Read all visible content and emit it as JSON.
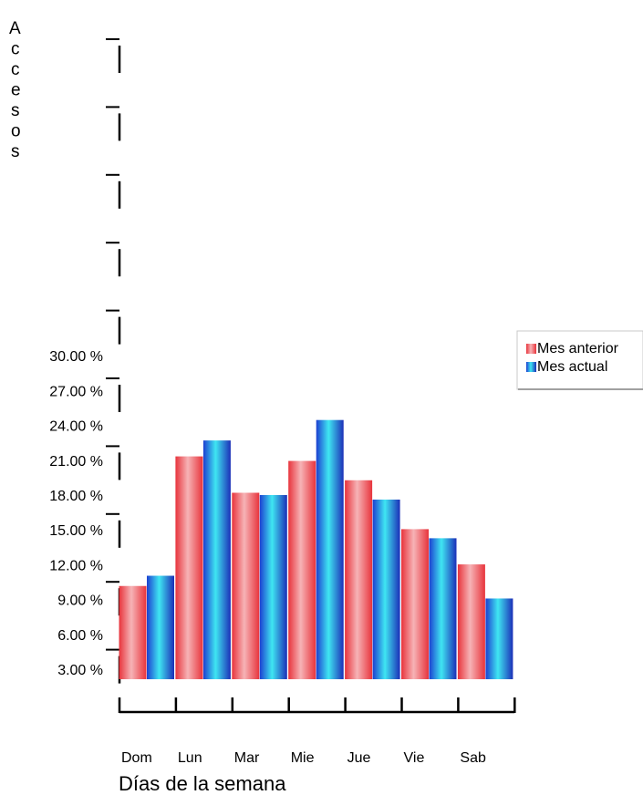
{
  "chart_data": {
    "type": "bar",
    "title": "",
    "xlabel": "Días de la semana",
    "ylabel": "Accesos",
    "categories": [
      "Dom",
      "Lun",
      "Mar",
      "Mie",
      "Jue",
      "Vie",
      "Sab"
    ],
    "series": [
      {
        "name": "Mes anterior",
        "color": "#e8343c",
        "values": [
          8.2,
          19.6,
          16.4,
          19.2,
          17.5,
          13.2,
          10.1
        ]
      },
      {
        "name": "Mes actual",
        "color": "#1c3fd1",
        "values": [
          9.1,
          21.0,
          16.2,
          22.8,
          15.8,
          12.4,
          7.1
        ]
      }
    ],
    "yticks": [
      "3.00 %",
      "6.00 %",
      "9.00 %",
      "12.00 %",
      "15.00 %",
      "18.00 %",
      "21.00 %",
      "24.00 %",
      "27.00 %",
      "30.00 %"
    ],
    "ylim": [
      0,
      30
    ],
    "legend_position": "right",
    "grid": false
  }
}
